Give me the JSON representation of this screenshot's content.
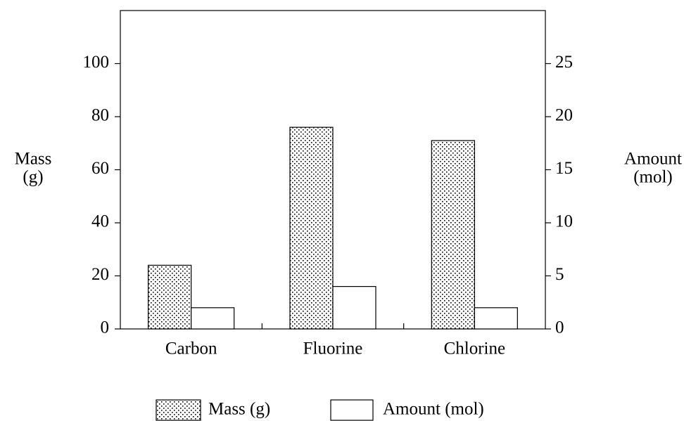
{
  "chart_data": {
    "type": "bar",
    "categories": [
      "Carbon",
      "Fluorine",
      "Chlorine"
    ],
    "series": [
      {
        "name": "Mass (g)",
        "color": "#000000",
        "pattern": "dots",
        "values": [
          24,
          76,
          71
        ]
      },
      {
        "name": "Amount (mol)",
        "color": "#ffffff",
        "axis": "y2",
        "values": [
          2,
          4,
          2
        ]
      }
    ],
    "ylabel": [
      "Mass",
      "(g)"
    ],
    "y2label": [
      "Amount",
      "(mol)"
    ],
    "ylim": [
      0,
      120
    ],
    "yticks": [
      0,
      20,
      40,
      60,
      80,
      100
    ],
    "y2lim": [
      0,
      30
    ],
    "y2ticks": [
      0,
      5,
      10,
      15,
      20,
      25
    ],
    "grid": false,
    "legend": "bottom"
  }
}
